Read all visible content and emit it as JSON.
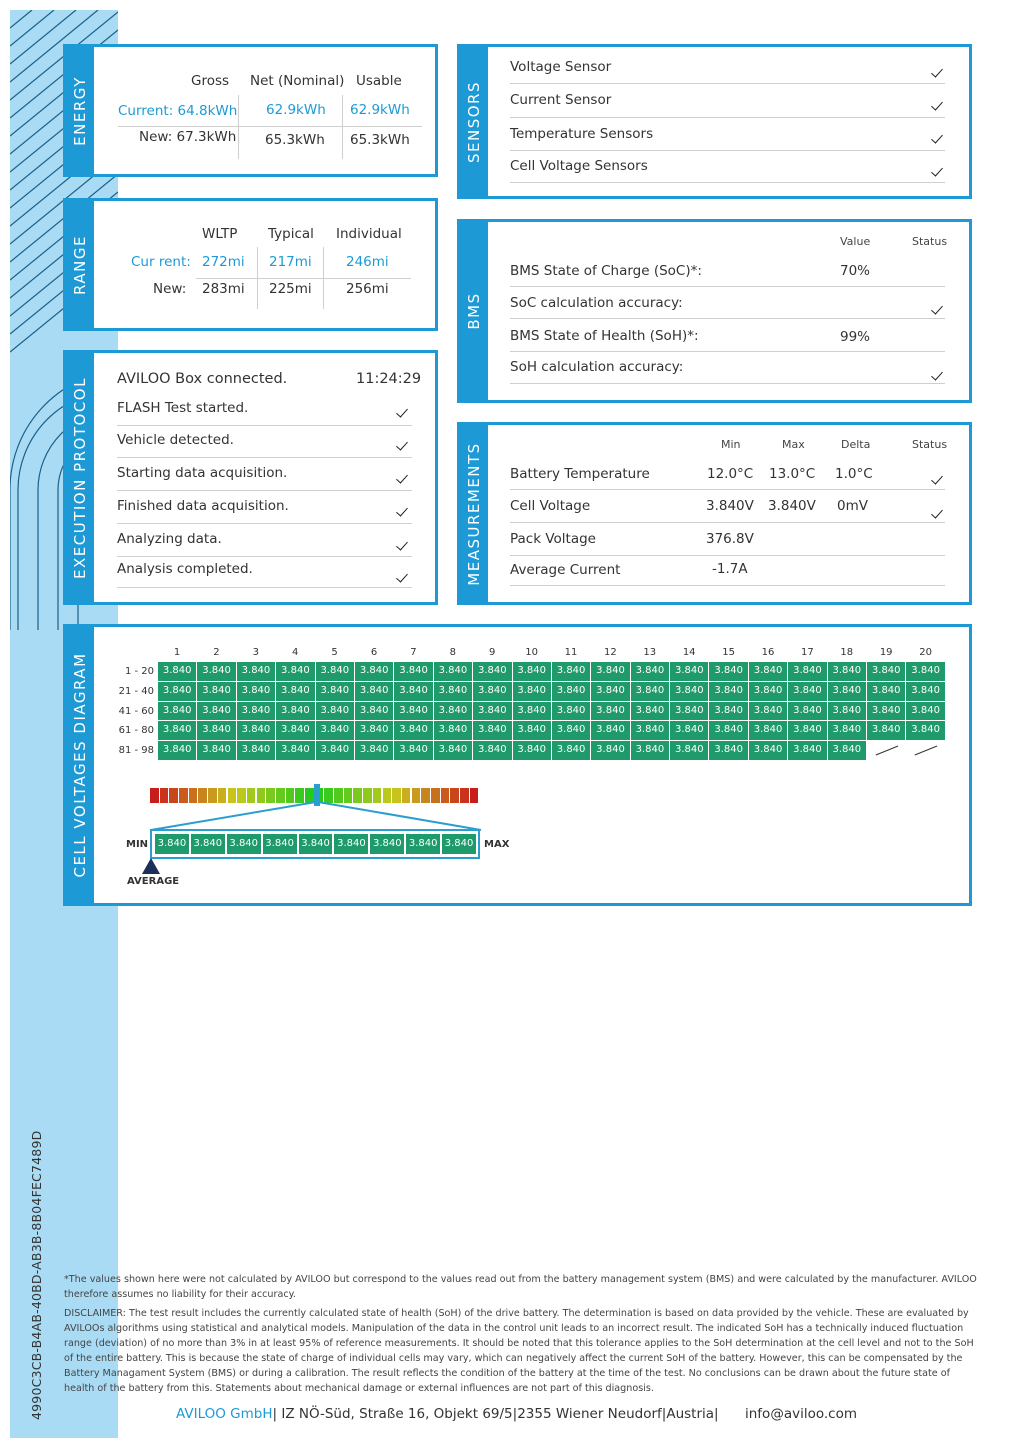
{
  "document_id": "4990C3CB-B4AB-40BD-AB3B-8B04FEC7489D",
  "energy": {
    "title": "ENERGY",
    "headers": [
      "Gross",
      "Net (Nominal)",
      "Usable"
    ],
    "current_label": "Current: 64.8kWh",
    "current_net": "62.9kWh",
    "current_usable": "62.9kWh",
    "new_label": "New: 67.3kWh",
    "new_net": "65.3kWh",
    "new_usable": "65.3kWh"
  },
  "range": {
    "title": "RANGE",
    "headers": [
      "WLTP",
      "Typical",
      "Individual"
    ],
    "current_label": "Cur rent:",
    "current_values": [
      "272mi",
      "217mi",
      "246mi"
    ],
    "new_label": "New:",
    "new_values": [
      "283mi",
      "225mi",
      "256mi"
    ]
  },
  "protocol": {
    "title": "EXECUTION PROTOCOL",
    "first": "AVILOO Box connected.",
    "time": "11:24:29",
    "steps": [
      "FLASH Test started.",
      "Vehicle detected.",
      "Starting data acquisition.",
      "Finished data acquisition.",
      "Analyzing data.",
      "Analysis completed."
    ]
  },
  "sensors": {
    "title": "SENSORS",
    "items": [
      "Voltage Sensor",
      "Current Sensor",
      "Temperature Sensors",
      "Cell Voltage Sensors"
    ]
  },
  "bms": {
    "title": "BMS",
    "col_value": "Value",
    "col_status": "Status",
    "rows": [
      {
        "label": "BMS State of Charge (SoC)*:",
        "value": "70%"
      },
      {
        "label": "SoC calculation accuracy:",
        "value": ""
      },
      {
        "label": "BMS State of Health (SoH)*:",
        "value": "99%"
      },
      {
        "label": "SoH calculation accuracy:",
        "value": ""
      }
    ]
  },
  "measurements": {
    "title": "MEASUREMENTS",
    "headers": [
      "Min",
      "Max",
      "Delta",
      "Status"
    ],
    "rows": [
      {
        "label": "Battery Temperature",
        "min": "12.0°C",
        "max": "13.0°C",
        "delta": "1.0°C"
      },
      {
        "label": "Cell Voltage",
        "min": "3.840V",
        "max": "3.840V",
        "delta": "0mV"
      },
      {
        "label": "Pack Voltage",
        "min": "376.8V",
        "max": "",
        "delta": ""
      },
      {
        "label": "Average Current",
        "min": "-1.7A",
        "max": "",
        "delta": ""
      }
    ]
  },
  "cell_voltages": {
    "title": "CELL VOLTAGES DIAGRAM",
    "columns": [
      "1",
      "2",
      "3",
      "4",
      "5",
      "6",
      "7",
      "8",
      "9",
      "10",
      "11",
      "12",
      "13",
      "14",
      "15",
      "16",
      "17",
      "18",
      "19",
      "20"
    ],
    "row_labels": [
      "1 - 20",
      "21 - 40",
      "41 - 60",
      "61 - 80",
      "81 - 98"
    ],
    "cell_value": "3.840",
    "cell_count": 98,
    "zoom_values": [
      "3.840",
      "3.840",
      "3.840",
      "3.840",
      "3.840",
      "3.840",
      "3.840",
      "3.840",
      "3.840"
    ],
    "min_label": "MIN",
    "max_label": "MAX",
    "average_label": "AVERAGE"
  },
  "footer": {
    "note": "*The values shown here were not calculated by AVILOO but correspond to the values read out from the battery management system (BMS) and were calculated by the manufacturer. AVILOO therefore assumes no liability for their accuracy.",
    "disclaimer": "DISCLAIMER: The test result includes the currently calculated state of health (SoH) of the drive battery. The determination is based on data provided by the vehicle. These are evaluated by AVILOOs algorithms using statistical and analytical models. Manipulation of the data in the control unit leads to an incorrect result. The indicated SoH has a technically induced fluctuation range (deviation) of no more than 3% in at least 95% of reference measurements. It should be noted that this tolerance applies to the SoH determination at the cell level and not to the SoH of the entire battery. This is because the state of charge of individual cells may vary, which can negatively affect the current SoH of the battery. However, this can be compensated by the Battery Managament System (BMS) or during a calibration. The result reflects the condition of the battery at the time of the test. No conclusions can be drawn about the future state of health of the battery from this. Statements about mechanical damage or external influences are not part of this diagnosis.",
    "company": "AVILOO GmbH",
    "address": "IZ NÖ-Süd, Straße 16, Objekt 69/5",
    "city": "2355 Wiener Neudorf",
    "country": "Austria",
    "email": "info@aviloo.com"
  },
  "colors": {
    "accent": "#1d9ad6",
    "sidebar": "#a9dcf4",
    "cell": "#1f9a6a"
  }
}
